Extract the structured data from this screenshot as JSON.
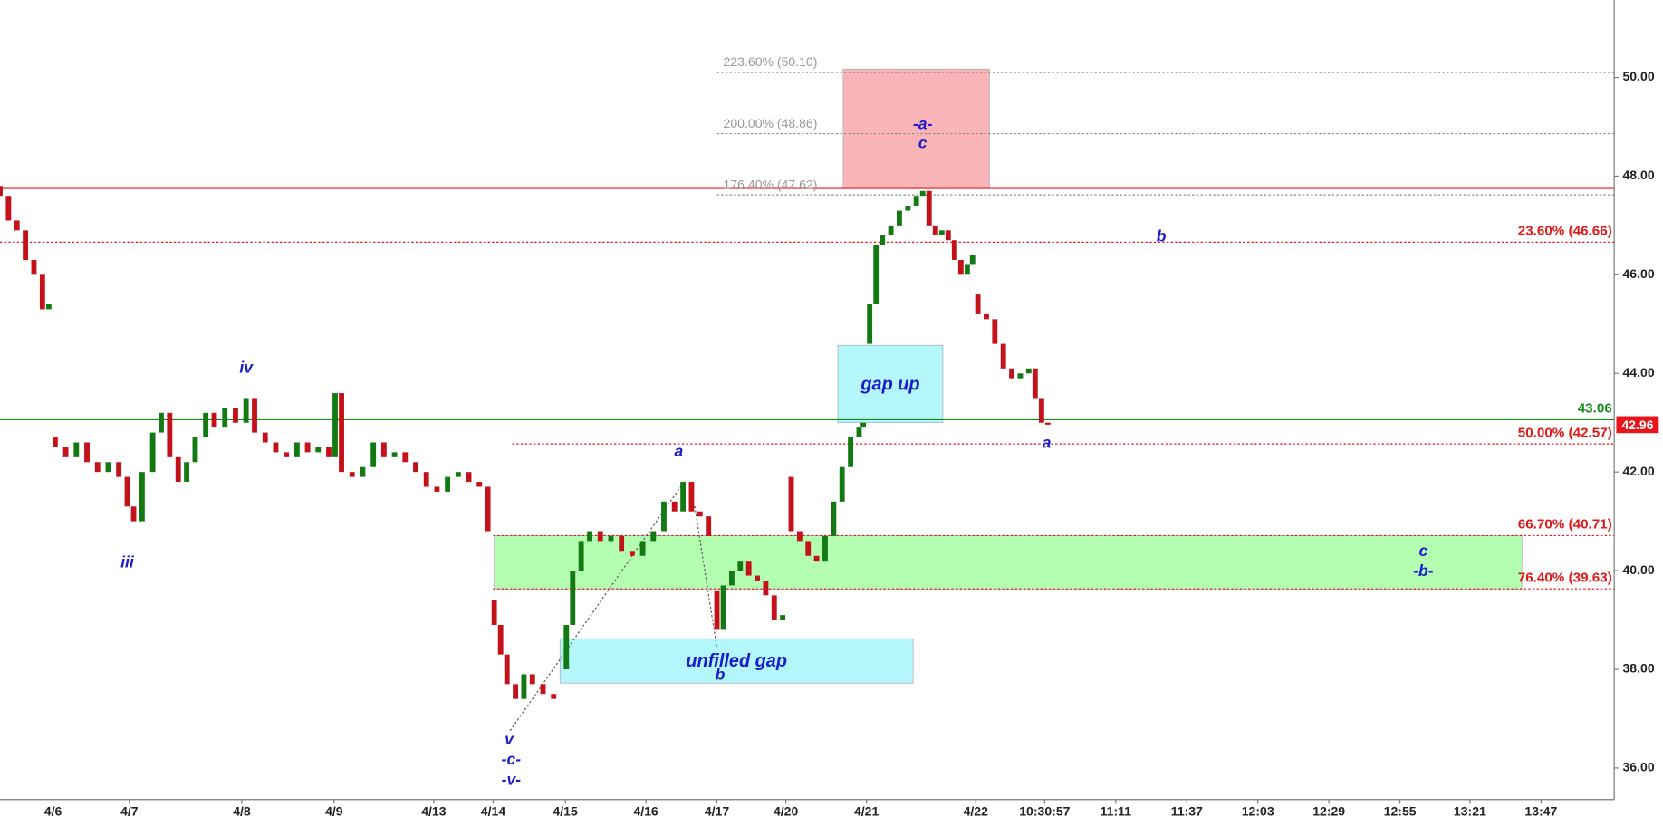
{
  "chart_data": {
    "type": "candlestick",
    "xlim": [
      0,
      1522
    ],
    "ylim": [
      35.36,
      51.57
    ],
    "xticks": [
      {
        "value": 50,
        "label": "4/6"
      },
      {
        "value": 122,
        "label": "4/7"
      },
      {
        "value": 228,
        "label": "4/8"
      },
      {
        "value": 315,
        "label": "4/9"
      },
      {
        "value": 409,
        "label": "4/13"
      },
      {
        "value": 465,
        "label": "4/14"
      },
      {
        "value": 533,
        "label": "4/15"
      },
      {
        "value": 609,
        "label": "4/16"
      },
      {
        "value": 676,
        "label": "4/17"
      },
      {
        "value": 741,
        "label": "4/20"
      },
      {
        "value": 817,
        "label": "4/21"
      },
      {
        "value": 920,
        "label": "4/22"
      },
      {
        "value": 985,
        "label": "10:30:57"
      },
      {
        "value": 1052,
        "label": "11:11"
      },
      {
        "value": 1119,
        "label": "11:37"
      },
      {
        "value": 1186,
        "label": "12:03"
      },
      {
        "value": 1253,
        "label": "12:29"
      },
      {
        "value": 1320,
        "label": "12:55"
      },
      {
        "value": 1386,
        "label": "13:21"
      },
      {
        "value": 1453,
        "label": "13:47"
      }
    ],
    "yticks": [
      {
        "value": 36,
        "label": "36.00"
      },
      {
        "value": 38,
        "label": "38.00"
      },
      {
        "value": 40,
        "label": "40.00"
      },
      {
        "value": 42,
        "label": "42.00"
      },
      {
        "value": 44,
        "label": "44.00"
      },
      {
        "value": 46,
        "label": "46.00"
      },
      {
        "value": 48,
        "label": "48.00"
      },
      {
        "value": 50,
        "label": "50.00"
      }
    ],
    "up_color": "#137a13",
    "down_color": "#c4121a",
    "x": [
      0,
      8,
      16,
      24,
      32,
      40,
      46,
      52,
      62,
      72,
      82,
      92,
      102,
      112,
      120,
      126,
      134,
      144,
      152,
      160,
      168,
      176,
      184,
      194,
      202,
      212,
      222,
      232,
      240,
      250,
      260,
      270,
      280,
      290,
      300,
      310,
      316,
      322,
      332,
      342,
      352,
      362,
      372,
      382,
      392,
      402,
      412,
      422,
      432,
      442,
      452,
      460,
      466,
      472,
      478,
      486,
      494,
      502,
      512,
      522,
      534,
      540,
      548,
      556,
      566,
      576,
      586,
      596,
      606,
      616,
      626,
      636,
      644,
      652,
      660,
      668,
      676,
      682,
      690,
      698,
      706,
      714,
      722,
      730,
      738,
      746,
      754,
      762,
      770,
      778,
      786,
      794,
      802,
      810,
      814,
      820,
      826,
      832,
      840,
      848,
      856,
      864,
      870,
      876,
      882,
      888,
      894,
      900,
      906,
      912,
      917,
      922,
      930,
      938,
      946,
      954,
      962,
      970,
      976,
      982,
      988
    ],
    "open": [
      47.8,
      47.6,
      47.1,
      46.9,
      46.3,
      46.0,
      45.3,
      42.7,
      42.5,
      42.3,
      42.6,
      42.2,
      42.0,
      42.2,
      41.9,
      41.3,
      41.0,
      42.0,
      42.8,
      43.2,
      42.3,
      41.8,
      42.2,
      42.7,
      43.2,
      42.9,
      43.3,
      43.0,
      43.5,
      42.8,
      42.6,
      42.4,
      42.3,
      42.6,
      42.4,
      42.5,
      42.3,
      43.6,
      42.0,
      41.9,
      42.1,
      42.6,
      42.3,
      42.4,
      42.2,
      42.0,
      41.7,
      41.6,
      41.9,
      42.0,
      41.8,
      41.7,
      39.4,
      38.9,
      38.3,
      37.7,
      37.4,
      37.9,
      37.7,
      37.5,
      38.0,
      38.9,
      40.0,
      40.6,
      40.8,
      40.6,
      40.7,
      40.4,
      40.3,
      40.6,
      40.8,
      41.4,
      41.2,
      41.8,
      41.2,
      41.1,
      39.6,
      38.8,
      39.7,
      40.0,
      40.2,
      39.9,
      39.8,
      39.5,
      39.0,
      41.9,
      40.8,
      40.6,
      40.3,
      40.2,
      40.7,
      41.4,
      42.1,
      42.7,
      42.9,
      44.6,
      45.4,
      46.6,
      46.8,
      47.0,
      47.3,
      47.4,
      47.6,
      47.7,
      47.0,
      46.8,
      46.9,
      46.7,
      46.3,
      46.0,
      46.2,
      45.6,
      45.2,
      45.1,
      44.6,
      44.1,
      43.9,
      44.0,
      44.1,
      43.5,
      43.0
    ],
    "close": [
      47.6,
      47.1,
      46.9,
      46.3,
      46.0,
      45.3,
      45.4,
      42.5,
      42.3,
      42.6,
      42.2,
      42.0,
      42.2,
      41.9,
      41.3,
      41.0,
      42.0,
      42.8,
      43.2,
      42.3,
      41.8,
      42.2,
      42.7,
      43.2,
      42.9,
      43.3,
      43.0,
      43.5,
      42.8,
      42.6,
      42.4,
      42.3,
      42.6,
      42.4,
      42.5,
      42.3,
      43.6,
      42.0,
      41.9,
      42.1,
      42.6,
      42.3,
      42.4,
      42.2,
      42.0,
      41.7,
      41.6,
      41.9,
      42.0,
      41.8,
      41.7,
      40.8,
      38.9,
      38.3,
      37.7,
      37.4,
      37.9,
      37.7,
      37.5,
      37.4,
      38.9,
      40.0,
      40.6,
      40.8,
      40.6,
      40.7,
      40.4,
      40.3,
      40.6,
      40.8,
      41.4,
      41.2,
      41.8,
      41.2,
      41.1,
      40.7,
      38.8,
      39.7,
      40.0,
      40.2,
      39.9,
      39.8,
      39.5,
      39.0,
      39.1,
      40.8,
      40.6,
      40.3,
      40.2,
      40.7,
      41.4,
      42.1,
      42.7,
      42.9,
      43.0,
      45.4,
      46.6,
      46.8,
      47.0,
      47.3,
      47.4,
      47.6,
      47.7,
      47.0,
      46.8,
      46.9,
      46.7,
      46.3,
      46.0,
      46.2,
      46.4,
      45.2,
      45.1,
      44.6,
      44.1,
      43.9,
      44.0,
      44.1,
      43.5,
      43.0,
      42.96
    ],
    "lines": [
      {
        "value": 47.75,
        "color": "#e8161a"
      },
      {
        "value": 43.06,
        "color": "#1a8a1a",
        "label": "43.06"
      }
    ],
    "fib_levels": [
      {
        "value": 46.66,
        "label": "23.60% (46.66)",
        "x0": 0
      },
      {
        "value": 42.57,
        "label": "50.00% (42.57)",
        "x0": 483
      },
      {
        "value": 40.71,
        "label": "66.70% (40.71)",
        "x0": 465
      },
      {
        "value": 39.63,
        "label": "76.40% (39.63)",
        "x0": 465
      }
    ],
    "fib_color": "#e01818",
    "extensions": [
      {
        "value": 47.62,
        "label": "176.40% (47.62)",
        "x0": 676
      },
      {
        "value": 48.86,
        "label": "200.00% (48.86)",
        "x0": 676
      },
      {
        "value": 50.1,
        "label": "223.60% (50.10)",
        "x0": 676
      }
    ],
    "zones": [
      {
        "x": [
          795,
          933
        ],
        "y": [
          50.17,
          47.75
        ],
        "color": "#f8b4b6"
      },
      {
        "x": [
          466,
          1435
        ],
        "y": [
          40.71,
          39.63
        ],
        "color": "#b3feb0"
      },
      {
        "x": [
          790,
          889
        ],
        "y": [
          44.57,
          43.0
        ],
        "color": "#b3f6fb",
        "label": "gap up"
      },
      {
        "x": [
          528,
          861
        ],
        "y": [
          38.62,
          37.72
        ],
        "color": "#b3f6fb",
        "label": "unfilled gap"
      }
    ],
    "annotations": [
      "iv",
      "iii",
      "v",
      "-c-",
      "-v-",
      "a",
      "b",
      "-a-",
      "c",
      "b",
      "a",
      "c",
      "-b-"
    ]
  }
}
